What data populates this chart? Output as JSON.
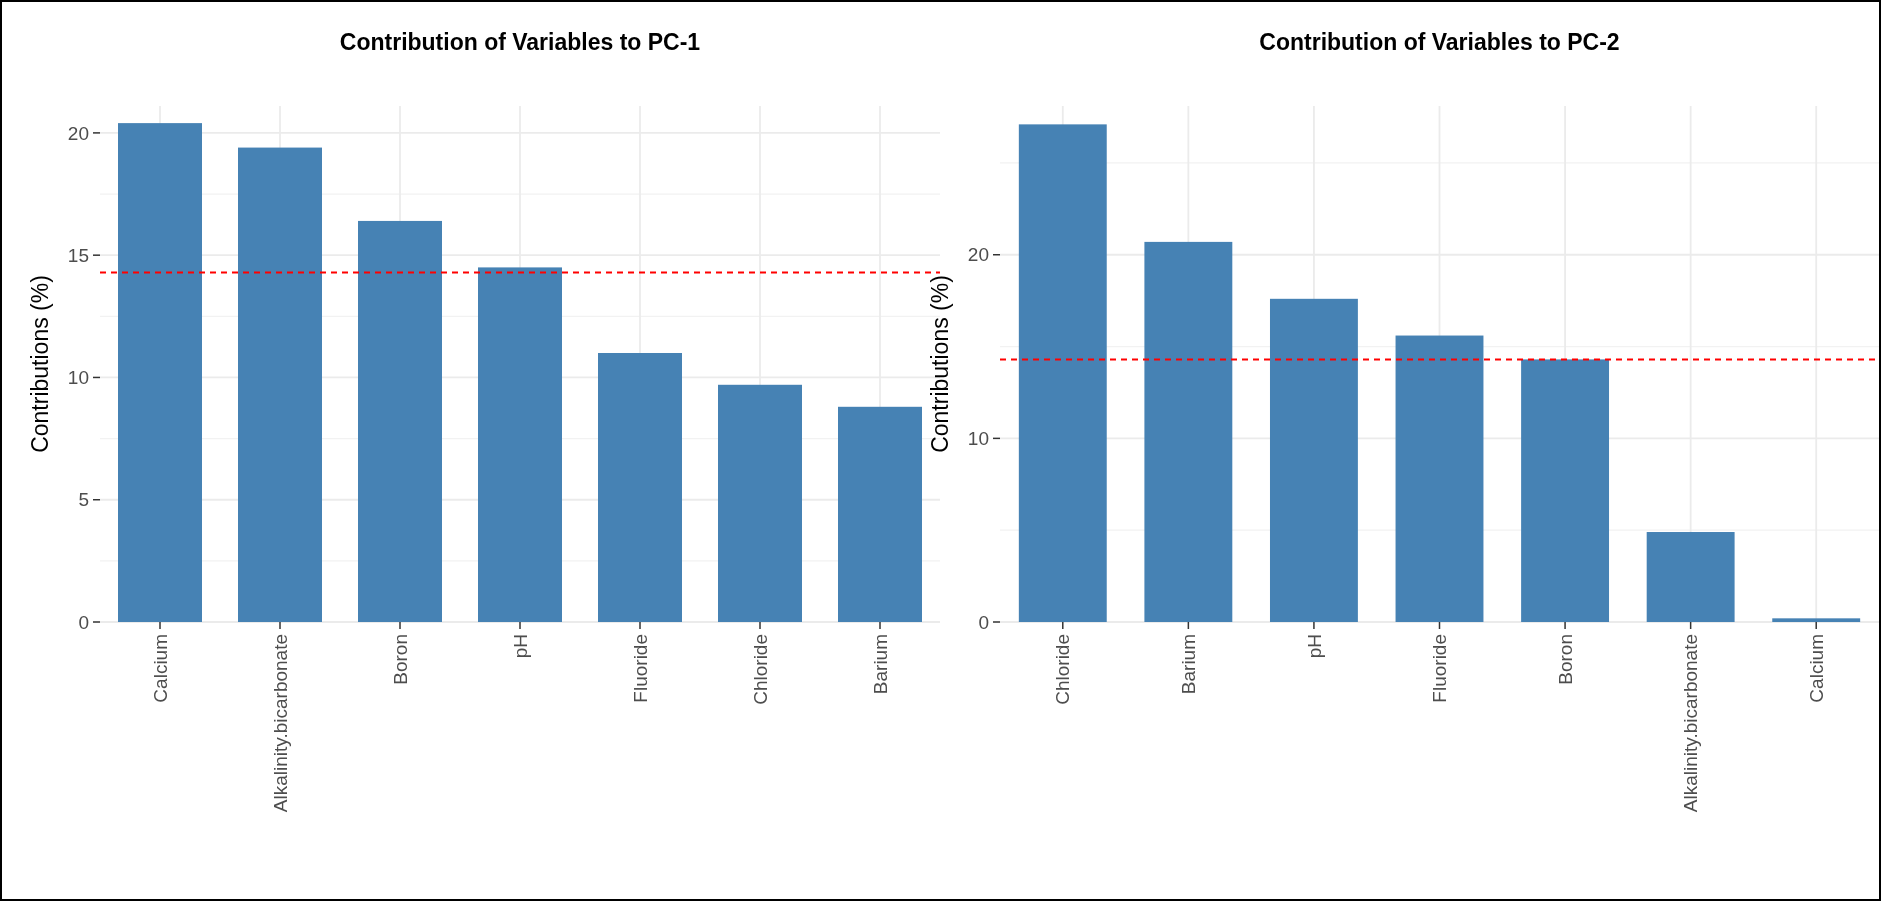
{
  "chart_data": [
    {
      "type": "bar",
      "title": "Contribution of Variables to PC-1",
      "ylabel": "Contributions (%)",
      "categories": [
        "Calcium",
        "Alkalinity.bicarbonate",
        "Boron",
        "pH",
        "Fluoride",
        "Chloride",
        "Barium"
      ],
      "values": [
        20.4,
        19.4,
        16.4,
        14.5,
        11.0,
        9.7,
        8.8
      ],
      "color": "#4682b4",
      "ylim": [
        0,
        21.1
      ],
      "yticks": [
        0,
        5,
        10,
        15,
        20
      ],
      "grid": true,
      "ref_lines": [
        {
          "axis": "y",
          "value": 14.29,
          "color": "#ff0000",
          "line_style": "dashed"
        }
      ]
    },
    {
      "type": "bar",
      "title": "Contribution of Variables to PC-2",
      "ylabel": "Contributions (%)",
      "categories": [
        "Chloride",
        "Barium",
        "pH",
        "Fluoride",
        "Boron",
        "Alkalinity.bicarbonate",
        "Calcium"
      ],
      "values": [
        27.1,
        20.7,
        17.6,
        15.6,
        14.3,
        4.9,
        0.2
      ],
      "color": "#4682b4",
      "ylim": [
        0,
        28.1
      ],
      "yticks": [
        0,
        10,
        20
      ],
      "grid": true,
      "ref_lines": [
        {
          "axis": "y",
          "value": 14.29,
          "color": "#ff0000",
          "line_style": "dashed"
        }
      ]
    }
  ]
}
